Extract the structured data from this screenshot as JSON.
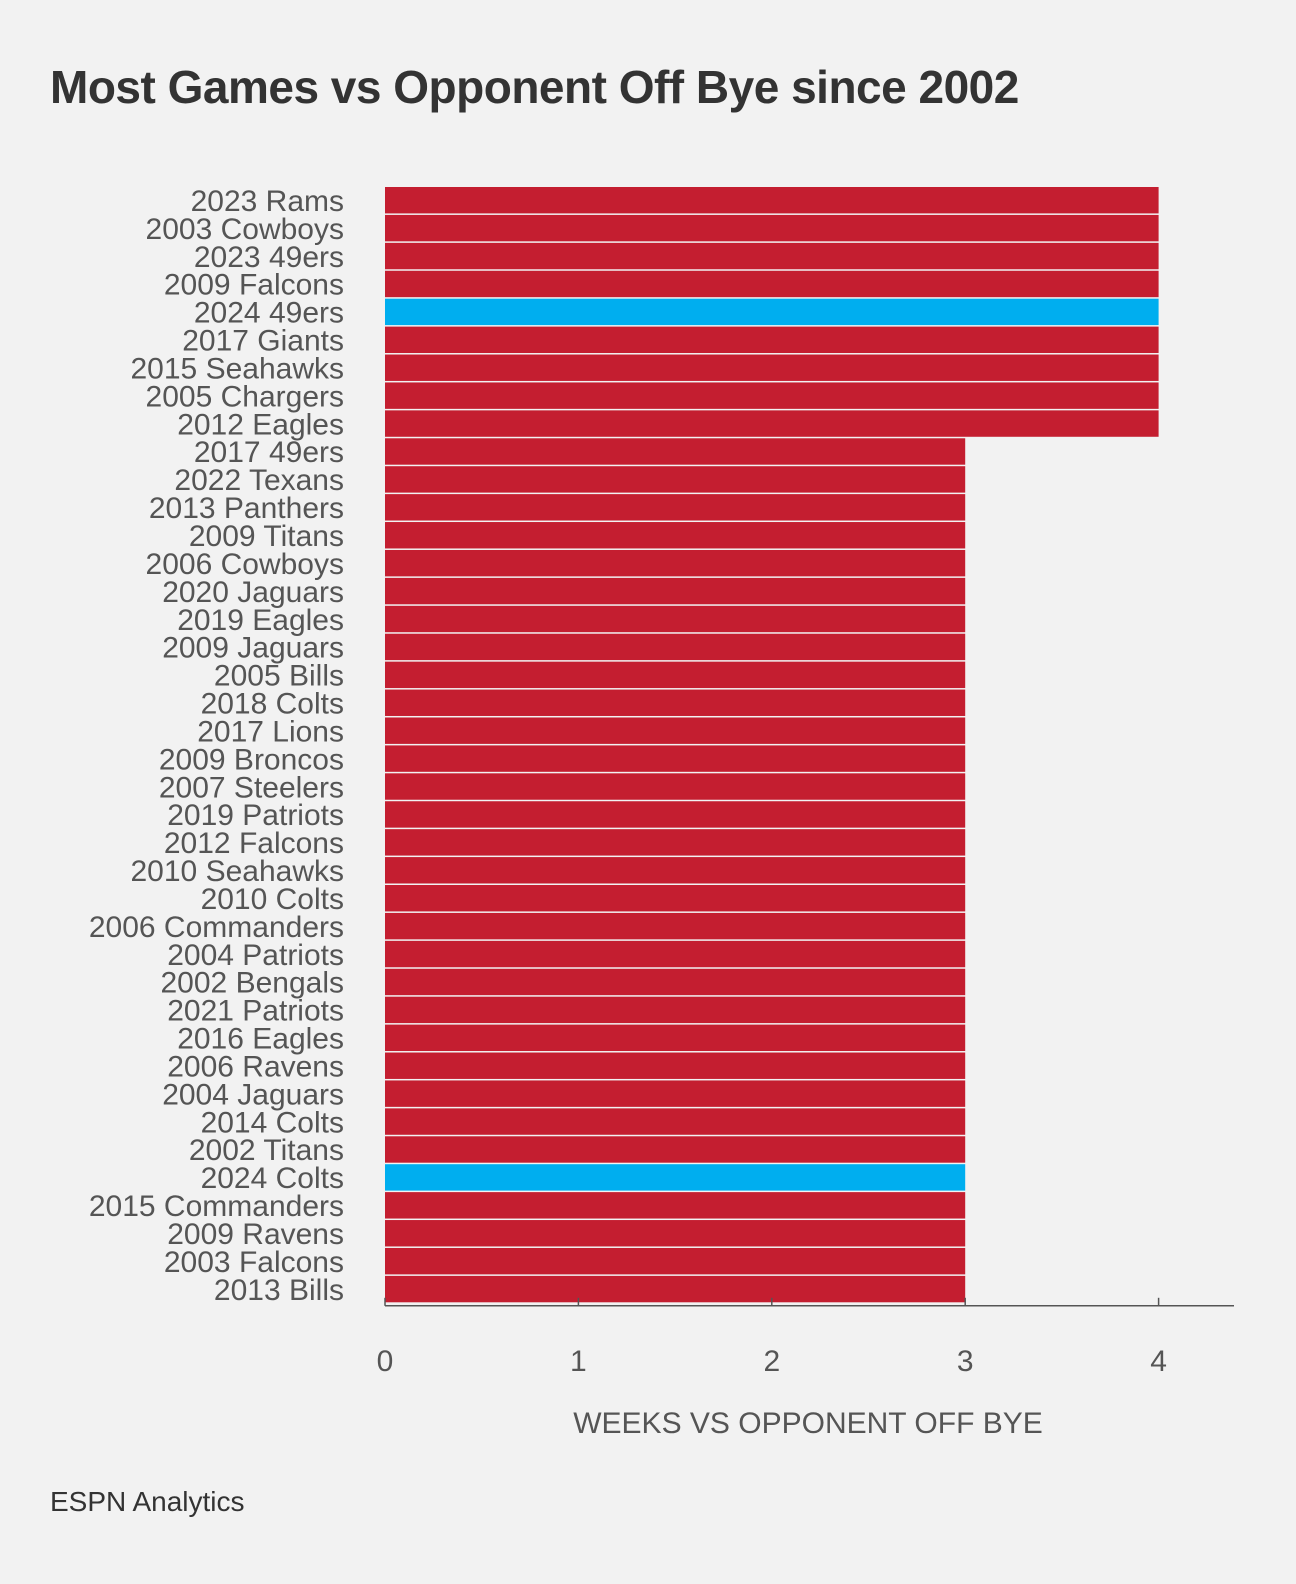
{
  "title": "Most Games vs Opponent Off Bye since 2002",
  "source": "ESPN Analytics",
  "colors": {
    "background": "#f2f2f2",
    "bar": "#c41e30",
    "highlight": "#00aeef",
    "text": "#555555",
    "axis": "#555555"
  },
  "chart_data": {
    "type": "bar",
    "orientation": "horizontal",
    "title": "Most Games vs Opponent Off Bye since 2002",
    "xlabel": "WEEKS VS OPPONENT OFF BYE",
    "ylabel": "",
    "xlim": [
      0,
      4.4
    ],
    "xticks": [
      0,
      1,
      2,
      3,
      4
    ],
    "grid": false,
    "categories": [
      "2023 Rams",
      "2003 Cowboys",
      "2023 49ers",
      "2009 Falcons",
      "2024 49ers",
      "2017 Giants",
      "2015 Seahawks",
      "2005 Chargers",
      "2012 Eagles",
      "2017 49ers",
      "2022 Texans",
      "2013 Panthers",
      "2009 Titans",
      "2006 Cowboys",
      "2020 Jaguars",
      "2019 Eagles",
      "2009 Jaguars",
      "2005 Bills",
      "2018 Colts",
      "2017 Lions",
      "2009 Broncos",
      "2007 Steelers",
      "2019 Patriots",
      "2012 Falcons",
      "2010 Seahawks",
      "2010 Colts",
      "2006 Commanders",
      "2004 Patriots",
      "2002 Bengals",
      "2021 Patriots",
      "2016 Eagles",
      "2006 Ravens",
      "2004 Jaguars",
      "2014 Colts",
      "2002 Titans",
      "2024 Colts",
      "2015 Commanders",
      "2009 Ravens",
      "2003 Falcons",
      "2013 Bills"
    ],
    "values": [
      4,
      4,
      4,
      4,
      4,
      4,
      4,
      4,
      4,
      3,
      3,
      3,
      3,
      3,
      3,
      3,
      3,
      3,
      3,
      3,
      3,
      3,
      3,
      3,
      3,
      3,
      3,
      3,
      3,
      3,
      3,
      3,
      3,
      3,
      3,
      3,
      3,
      3,
      3,
      3
    ],
    "highlighted": [
      "2024 49ers",
      "2024 Colts"
    ]
  }
}
